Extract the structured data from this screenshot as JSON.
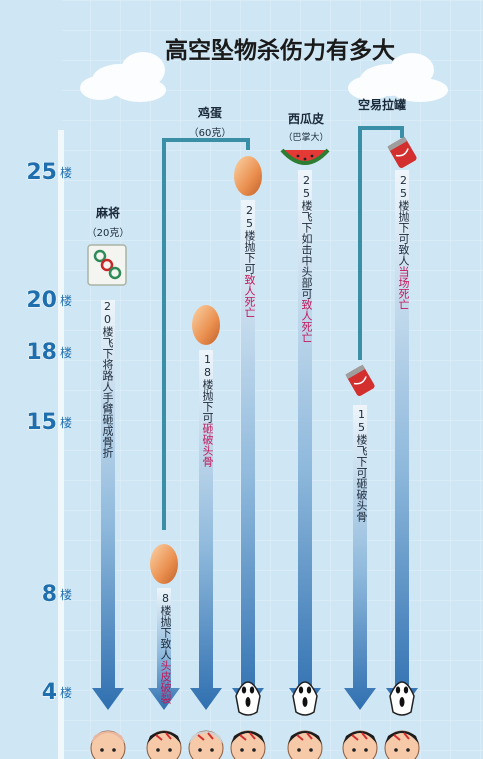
{
  "title": "高空坠物杀伤力有多大",
  "floor_scale": {
    "unit": "楼",
    "levels": [
      25,
      20,
      18,
      15,
      8,
      4
    ]
  },
  "items": [
    {
      "id": "mahjong",
      "name": "麻将",
      "weight": "（20克）",
      "floor": 20,
      "desc_prefix": "20楼飞下将路人手臂砸成骨折",
      "desc_highlight": ""
    },
    {
      "id": "egg",
      "name": "鸡蛋",
      "weight": "（60克）",
      "cases": [
        {
          "floor": 8,
          "desc_prefix": "8楼抛下致人",
          "desc_highlight": "头皮破裂",
          "desc_suffix": ""
        },
        {
          "floor": 18,
          "desc_prefix": "18楼抛下可",
          "desc_highlight": "砸破头骨",
          "desc_suffix": ""
        },
        {
          "floor": 25,
          "desc_prefix": "25楼抛下可",
          "desc_highlight": "致人死亡",
          "desc_suffix": ""
        }
      ]
    },
    {
      "id": "watermelon-rind",
      "name": "西瓜皮",
      "weight": "（巴掌大）",
      "floor": 25,
      "desc_prefix": "25楼飞下如击中头部可",
      "desc_highlight": "致人死亡",
      "desc_suffix": ""
    },
    {
      "id": "can",
      "name": "空易拉罐",
      "cases": [
        {
          "floor": 15,
          "desc_prefix": "15楼飞下可砸破头骨",
          "desc_highlight": "",
          "desc_suffix": ""
        },
        {
          "floor": 25,
          "desc_prefix": "25楼抛下可致人",
          "desc_highlight": "当场死亡",
          "desc_suffix": ""
        }
      ]
    }
  ],
  "colors": {
    "background": "#cfe7f4",
    "arrow_top": "#e6f1f8",
    "arrow_bottom": "#2f73b5",
    "bracket": "#3a8fa6",
    "label": "#1f6fae",
    "highlight": "#c2185b"
  }
}
